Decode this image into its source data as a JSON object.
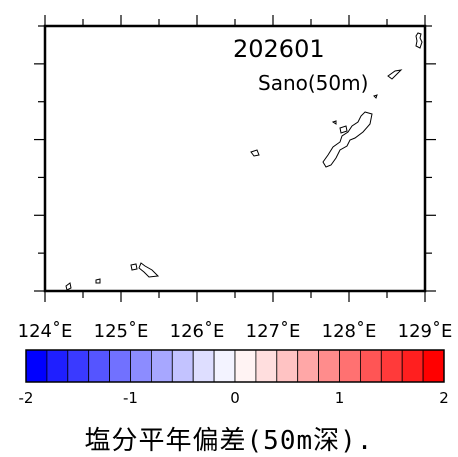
{
  "map": {
    "date_label": "202601",
    "station_label": "Sano(50m)",
    "lon_ticks": [
      "124˚E",
      "125˚E",
      "126˚E",
      "127˚E",
      "128˚E",
      "129˚E"
    ]
  },
  "colorbar": {
    "min": -2,
    "max": 2,
    "n_bins": 20,
    "tick_labels": [
      "-2",
      "-1",
      "0",
      "1",
      "2"
    ],
    "colors": [
      "#0000ff",
      "#1f1fff",
      "#3a3aff",
      "#5555ff",
      "#7171ff",
      "#8c8cff",
      "#a7a7ff",
      "#c3c3ff",
      "#dedeff",
      "#f3f3ff",
      "#fff3f3",
      "#ffdede",
      "#ffc3c3",
      "#ffa7a7",
      "#ff8c8c",
      "#ff7171",
      "#ff5555",
      "#ff3a3a",
      "#ff1f1f",
      "#ff0000"
    ]
  },
  "caption": "塩分平年偏差(50m深)."
}
